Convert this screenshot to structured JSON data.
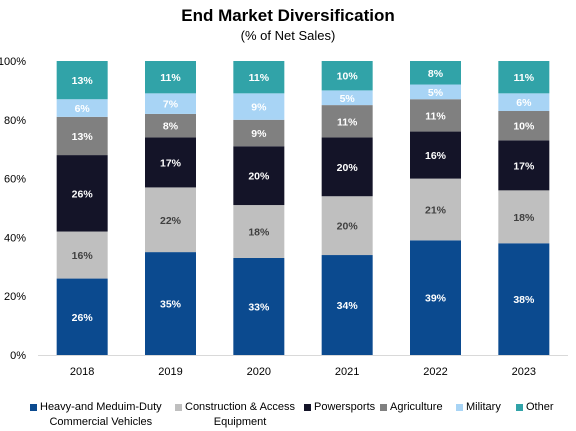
{
  "chart_data": {
    "type": "bar",
    "stacked": true,
    "title": "End Market Diversification",
    "subtitle": "(% of Net Sales)",
    "categories": [
      "2018",
      "2019",
      "2020",
      "2021",
      "2022",
      "2023"
    ],
    "ylim": [
      0,
      100
    ],
    "yticks": [
      "0%",
      "20%",
      "40%",
      "60%",
      "80%",
      "100%"
    ],
    "legend_position": "bottom",
    "series": [
      {
        "name": "Heavy-and Meduim-Duty Commercial Vehicles",
        "name_line1": "Heavy-and Meduim-Duty",
        "name_line2": "Commercial Vehicles",
        "color": "#0b4a8f",
        "label_color": "#ffffff",
        "values": [
          26,
          35,
          33,
          34,
          39,
          38
        ],
        "labels": [
          "26%",
          "35%",
          "33%",
          "34%",
          "39%",
          "38%"
        ]
      },
      {
        "name": "Construction & Access Equipment",
        "name_line1": "Construction & Access",
        "name_line2": "Equipment",
        "color": "#bfbfbf",
        "label_color": "#404040",
        "values": [
          16,
          22,
          18,
          20,
          21,
          18
        ],
        "labels": [
          "16%",
          "22%",
          "18%",
          "20%",
          "21%",
          "18%"
        ]
      },
      {
        "name": "Powersports",
        "color": "#141428",
        "label_color": "#ffffff",
        "values": [
          26,
          17,
          20,
          20,
          16,
          17
        ],
        "labels": [
          "26%",
          "17%",
          "20%",
          "20%",
          "16%",
          "17%"
        ]
      },
      {
        "name": "Agriculture",
        "color": "#808080",
        "label_color": "#ffffff",
        "values": [
          13,
          8,
          9,
          11,
          11,
          10
        ],
        "labels": [
          "13%",
          "8%",
          "9%",
          "11%",
          "11%",
          "10%"
        ]
      },
      {
        "name": "Military",
        "color": "#a8d4f5",
        "label_color": "#ffffff",
        "values": [
          6,
          7,
          9,
          5,
          5,
          6
        ],
        "labels": [
          "6%",
          "7%",
          "9%",
          "5%",
          "5%",
          "6%"
        ]
      },
      {
        "name": "Other",
        "color": "#31a3a8",
        "label_color": "#ffffff",
        "values": [
          13,
          11,
          11,
          10,
          8,
          11
        ],
        "labels": [
          "13%",
          "11%",
          "11%",
          "10%",
          "8%",
          "11%"
        ]
      }
    ]
  }
}
